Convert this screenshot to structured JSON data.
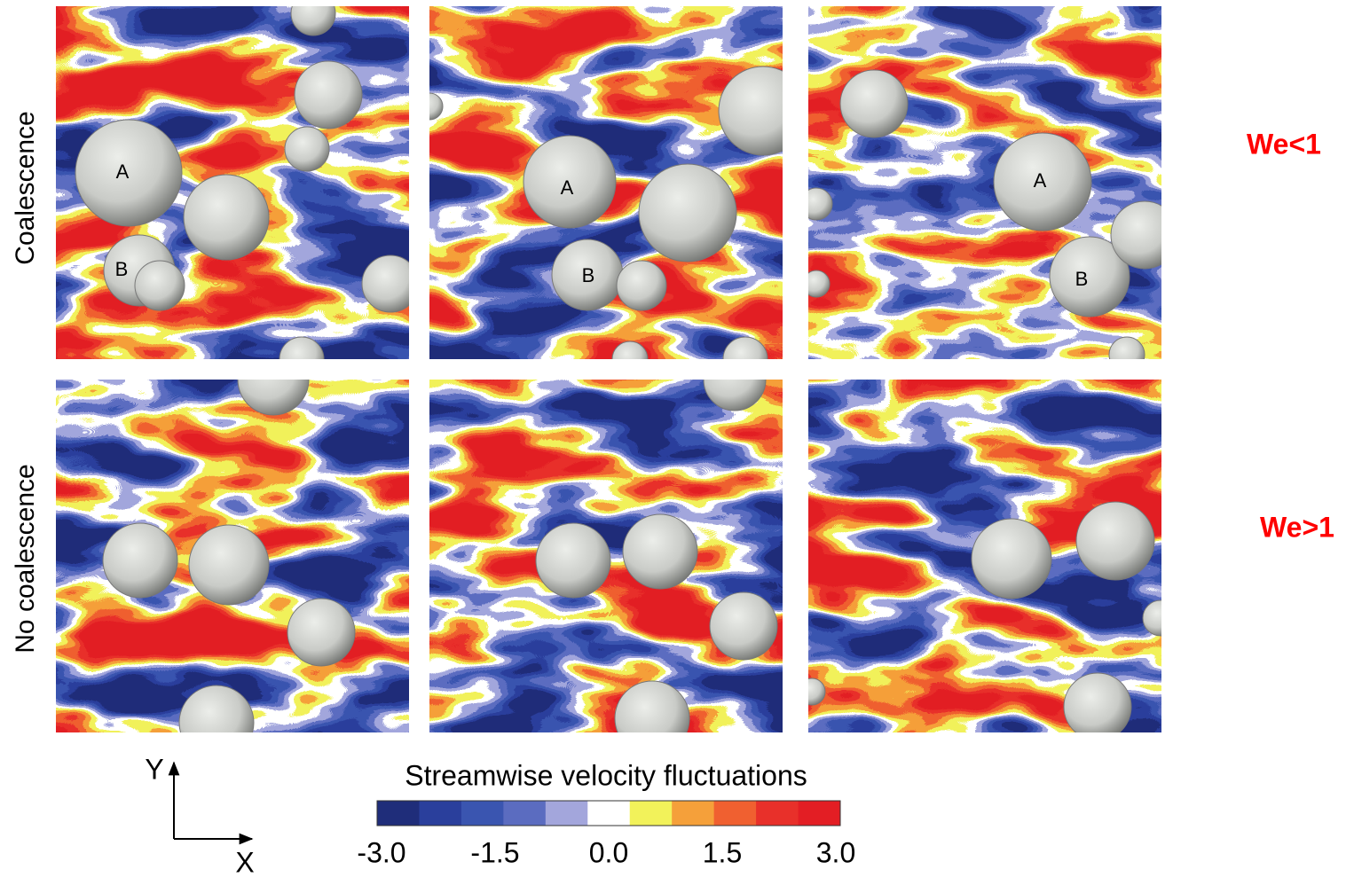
{
  "rows": [
    {
      "label": "Coalescence",
      "regime": "We<1",
      "panels": [
        [
          "A",
          "B"
        ],
        [
          "A",
          "B"
        ],
        [
          "A",
          "B"
        ]
      ]
    },
    {
      "label": "No coalescence",
      "regime": "We>1"
    }
  ],
  "colorbar": {
    "title": "Streamwise velocity fluctuations",
    "colors": [
      "#1f2d7a",
      "#2a3f9c",
      "#3a55b0",
      "#5b6cc0",
      "#a3a6dc",
      "#ffffff",
      "#f2f25a",
      "#f5a03a",
      "#f06030",
      "#e8302a",
      "#e31e24"
    ],
    "ticks": [
      "-3.0",
      "-1.5",
      "0.0",
      "1.5",
      "3.0"
    ]
  },
  "axes": {
    "x": "X",
    "y": "Y"
  }
}
